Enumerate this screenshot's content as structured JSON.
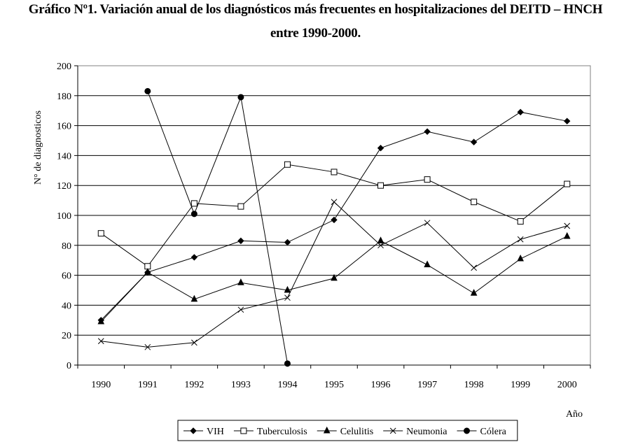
{
  "chart_data": {
    "type": "line",
    "title": "Gráfico Nº1. Variación anual de los diagnósticos más frecuentes en  hospitalizaciones del DEITD – HNCH",
    "subtitle": "entre 1990-2000.",
    "xlabel": "Año",
    "ylabel": "N° de diagnosticos",
    "ylim": [
      0,
      200
    ],
    "yticks": [
      0,
      20,
      40,
      60,
      80,
      100,
      120,
      140,
      160,
      180,
      200
    ],
    "categories": [
      "1990",
      "1991",
      "1992",
      "1993",
      "1994",
      "1995",
      "1996",
      "1997",
      "1998",
      "1999",
      "2000"
    ],
    "grid": true,
    "legend": "bottom",
    "series": [
      {
        "name": "VIH",
        "marker": "diamond",
        "values": [
          30,
          62,
          72,
          83,
          82,
          97,
          145,
          156,
          149,
          169,
          163
        ]
      },
      {
        "name": "Tuberculosis",
        "marker": "square-open",
        "values": [
          88,
          66,
          108,
          106,
          134,
          129,
          120,
          124,
          109,
          96,
          121
        ]
      },
      {
        "name": "Celulitis",
        "marker": "triangle",
        "values": [
          29,
          62,
          44,
          55,
          50,
          58,
          83,
          67,
          48,
          71,
          86
        ]
      },
      {
        "name": "Neumonia",
        "marker": "x",
        "values": [
          16,
          12,
          15,
          37,
          45,
          109,
          80,
          95,
          65,
          84,
          93
        ]
      },
      {
        "name": "Cólera",
        "marker": "circle",
        "values": [
          null,
          183,
          101,
          179,
          1,
          null,
          null,
          null,
          null,
          null,
          null
        ]
      }
    ]
  }
}
